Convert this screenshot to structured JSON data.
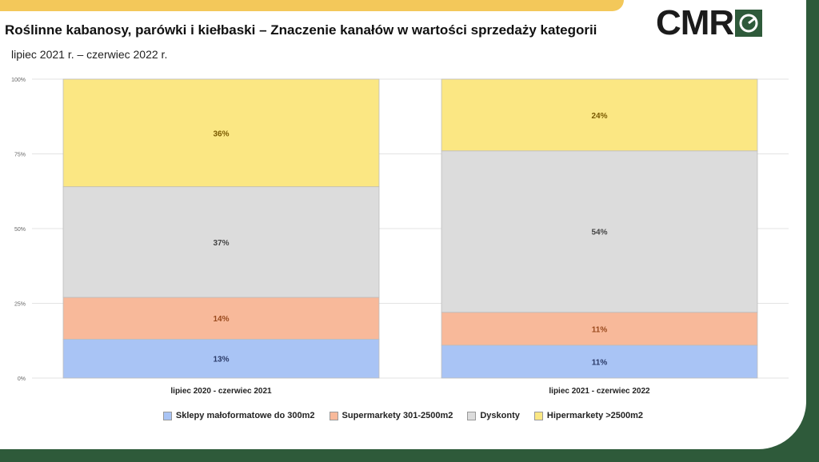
{
  "header": {
    "title": "Roślinne kabanosy, parówki i kiełbaski – Znaczenie kanałów w wartości sprzedaży kategorii",
    "subtitle": "lipiec 2021 r. – czerwiec 2022 r.",
    "logo_text": "CMR"
  },
  "chart_data": {
    "type": "bar",
    "stacked": true,
    "categories": [
      "lipiec 2020 - czerwiec 2021",
      "lipiec 2021 - czerwiec 2022"
    ],
    "series": [
      {
        "name": "Sklepy małoformatowe do 300m2",
        "values": [
          13,
          11
        ],
        "color": "#a9c4f5",
        "label_color": "#2b3a67"
      },
      {
        "name": "Supermarkety 301-2500m2",
        "values": [
          14,
          11
        ],
        "color": "#f8b99a",
        "label_color": "#9a4a1e"
      },
      {
        "name": "Dyskonty",
        "values": [
          37,
          54
        ],
        "color": "#dcdcdc",
        "label_color": "#444444"
      },
      {
        "name": "Hipermarkety >2500m2",
        "values": [
          36,
          24
        ],
        "color": "#fbe783",
        "label_color": "#7a5a00"
      }
    ],
    "data_labels": [
      [
        "13%",
        "11%"
      ],
      [
        "14%",
        "11%"
      ],
      [
        "37%",
        "54%"
      ],
      [
        "36%",
        "24%"
      ]
    ],
    "ylim": [
      0,
      100
    ],
    "yticks": [
      0,
      25,
      50,
      75,
      100
    ],
    "ytick_labels": [
      "0%",
      "25%",
      "50%",
      "75%",
      "100%"
    ],
    "grid": true,
    "legend_position": "bottom"
  }
}
